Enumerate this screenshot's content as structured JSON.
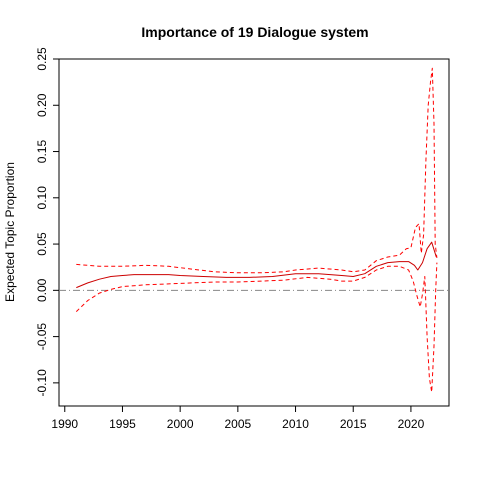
{
  "chart_data": {
    "type": "line",
    "title": "Importance of 19 Dialogue system",
    "xlabel": "",
    "ylabel": "Expected Topic Proportion",
    "xlim": [
      1989.5,
      2023.3
    ],
    "ylim": [
      -0.125,
      0.25
    ],
    "x_ticks": [
      1990,
      1995,
      2000,
      2005,
      2010,
      2015,
      2020
    ],
    "y_ticks": [
      -0.1,
      -0.05,
      0.0,
      0.05,
      0.1,
      0.15,
      0.2,
      0.25
    ],
    "x_tick_labels": [
      "1990",
      "1995",
      "2000",
      "2005",
      "2010",
      "2015",
      "2020"
    ],
    "y_tick_labels": [
      "-0.10",
      "-0.05",
      "0.00",
      "0.05",
      "0.10",
      "0.15",
      "0.20",
      "0.25"
    ],
    "grid": false,
    "reference_line": {
      "y": 0,
      "style": "dash-dot",
      "color": "#888888"
    },
    "series": [
      {
        "role": "estimate",
        "line_style": "solid",
        "color": "#cc0000",
        "points": [
          [
            1991,
            0.003
          ],
          [
            1992,
            0.008
          ],
          [
            1993,
            0.012
          ],
          [
            1994,
            0.015
          ],
          [
            1995,
            0.016
          ],
          [
            1996,
            0.017
          ],
          [
            1997,
            0.017
          ],
          [
            1998,
            0.017
          ],
          [
            1999,
            0.017
          ],
          [
            2000,
            0.016
          ],
          [
            2002,
            0.015
          ],
          [
            2004,
            0.014
          ],
          [
            2006,
            0.014
          ],
          [
            2008,
            0.015
          ],
          [
            2010,
            0.018
          ],
          [
            2012,
            0.018
          ],
          [
            2013,
            0.017
          ],
          [
            2014,
            0.016
          ],
          [
            2015,
            0.015
          ],
          [
            2016,
            0.018
          ],
          [
            2017,
            0.026
          ],
          [
            2018,
            0.03
          ],
          [
            2019,
            0.031
          ],
          [
            2019.8,
            0.031
          ],
          [
            2020.3,
            0.027
          ],
          [
            2020.6,
            0.022
          ],
          [
            2021.0,
            0.03
          ],
          [
            2021.4,
            0.045
          ],
          [
            2021.8,
            0.052
          ],
          [
            2022.2,
            0.036
          ]
        ]
      },
      {
        "role": "upper-bound",
        "line_style": "dashed",
        "color": "#ff0000",
        "points": [
          [
            1991,
            0.028
          ],
          [
            1993,
            0.026
          ],
          [
            1995,
            0.026
          ],
          [
            1997,
            0.027
          ],
          [
            1999,
            0.026
          ],
          [
            2001,
            0.023
          ],
          [
            2003,
            0.02
          ],
          [
            2005,
            0.019
          ],
          [
            2007,
            0.019
          ],
          [
            2009,
            0.02
          ],
          [
            2010,
            0.022
          ],
          [
            2012,
            0.024
          ],
          [
            2014,
            0.022
          ],
          [
            2015,
            0.02
          ],
          [
            2016,
            0.022
          ],
          [
            2017,
            0.032
          ],
          [
            2018,
            0.036
          ],
          [
            2019,
            0.038
          ],
          [
            2019.6,
            0.045
          ],
          [
            2020.0,
            0.046
          ],
          [
            2020.4,
            0.068
          ],
          [
            2020.7,
            0.072
          ],
          [
            2020.9,
            0.04
          ],
          [
            2021.1,
            0.06
          ],
          [
            2021.3,
            0.14
          ],
          [
            2021.5,
            0.2
          ],
          [
            2021.7,
            0.225
          ],
          [
            2021.85,
            0.24
          ],
          [
            2022.0,
            0.18
          ],
          [
            2022.1,
            0.05
          ],
          [
            2022.25,
            0.035
          ]
        ]
      },
      {
        "role": "lower-bound",
        "line_style": "dashed",
        "color": "#ff0000",
        "points": [
          [
            1991,
            -0.023
          ],
          [
            1992,
            -0.011
          ],
          [
            1993,
            -0.003
          ],
          [
            1994,
            0.001
          ],
          [
            1995,
            0.004
          ],
          [
            1997,
            0.006
          ],
          [
            1999,
            0.007
          ],
          [
            2001,
            0.008
          ],
          [
            2003,
            0.009
          ],
          [
            2005,
            0.009
          ],
          [
            2007,
            0.01
          ],
          [
            2009,
            0.011
          ],
          [
            2011,
            0.014
          ],
          [
            2013,
            0.012
          ],
          [
            2014,
            0.01
          ],
          [
            2015,
            0.01
          ],
          [
            2016,
            0.014
          ],
          [
            2017,
            0.022
          ],
          [
            2018,
            0.026
          ],
          [
            2019,
            0.026
          ],
          [
            2019.8,
            0.022
          ],
          [
            2020.2,
            0.01
          ],
          [
            2020.5,
            -0.005
          ],
          [
            2020.8,
            -0.018
          ],
          [
            2021.0,
            -0.004
          ],
          [
            2021.2,
            0.015
          ],
          [
            2021.4,
            -0.05
          ],
          [
            2021.6,
            -0.095
          ],
          [
            2021.8,
            -0.11
          ],
          [
            2022.0,
            -0.06
          ],
          [
            2022.15,
            0.0
          ],
          [
            2022.25,
            0.03
          ]
        ]
      }
    ]
  }
}
